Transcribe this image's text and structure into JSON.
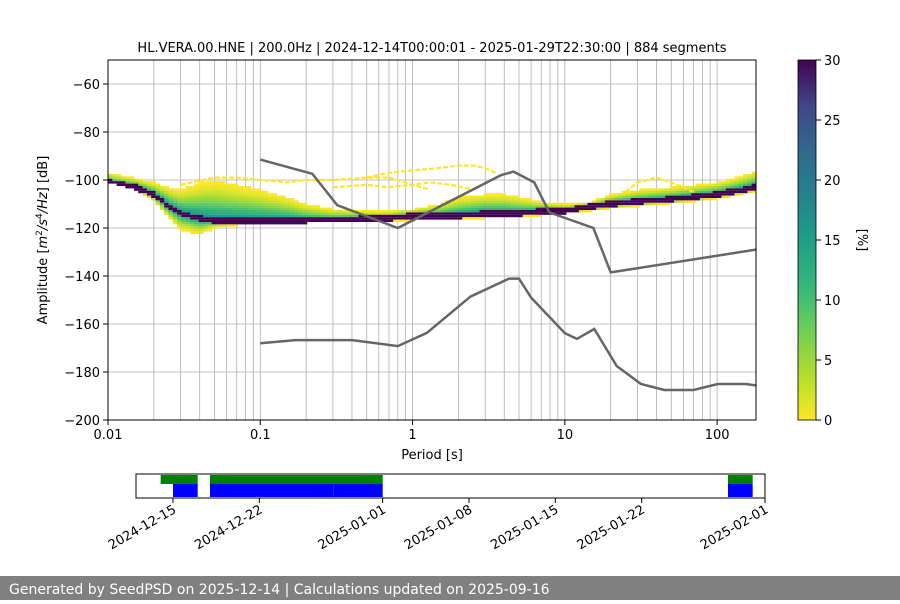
{
  "chart_data": {
    "type": "heatmap",
    "title": "HL.VERA.00.HNE | 200.0Hz | 2024-12-14T00:00:01 - 2025-01-29T22:30:00 | 884 segments",
    "xlabel": "Period [s]",
    "ylabel": "Amplitude [m²/s⁴/Hz] [dB]",
    "xscale": "log",
    "xlim": [
      0.01,
      180
    ],
    "ylim": [
      -200,
      -50
    ],
    "x_ticks": [
      {
        "value": 0.01,
        "label": "0.01"
      },
      {
        "value": 0.1,
        "label": "0.1"
      },
      {
        "value": 1,
        "label": "1"
      },
      {
        "value": 10,
        "label": "10"
      },
      {
        "value": 100,
        "label": "100"
      }
    ],
    "y_ticks": [
      {
        "value": -60,
        "label": "−60"
      },
      {
        "value": -80,
        "label": "−80"
      },
      {
        "value": -100,
        "label": "−100"
      },
      {
        "value": -120,
        "label": "−120"
      },
      {
        "value": -140,
        "label": "−140"
      },
      {
        "value": -160,
        "label": "−160"
      },
      {
        "value": -180,
        "label": "−180"
      },
      {
        "value": -200,
        "label": "−200"
      }
    ],
    "grid": true,
    "colorbar": {
      "label": "[%]",
      "range": [
        0,
        30
      ],
      "ticks": [
        {
          "value": 0,
          "label": "0"
        },
        {
          "value": 5,
          "label": "5"
        },
        {
          "value": 10,
          "label": "10"
        },
        {
          "value": 15,
          "label": "15"
        },
        {
          "value": 20,
          "label": "20"
        },
        {
          "value": 25,
          "label": "25"
        },
        {
          "value": 30,
          "label": "30"
        }
      ],
      "colormap": "viridis_r"
    },
    "psd_mode": {
      "period": [
        0.01,
        0.015,
        0.02,
        0.025,
        0.03,
        0.04,
        0.05,
        0.07,
        0.1,
        0.15,
        0.2,
        0.3,
        0.5,
        0.7,
        1,
        1.5,
        2,
        3,
        4,
        5,
        7,
        10,
        15,
        20,
        30,
        50,
        70,
        100,
        150,
        180
      ],
      "db": [
        -101,
        -103,
        -106,
        -111,
        -114,
        -116,
        -117,
        -117,
        -117,
        -117,
        -117,
        -117,
        -116,
        -116,
        -115,
        -115,
        -115,
        -114,
        -114,
        -114,
        -113,
        -113,
        -111,
        -110,
        -109,
        -108,
        -107,
        -106,
        -104,
        -103
      ]
    },
    "psd_band_upper": {
      "period": [
        0.01,
        0.015,
        0.02,
        0.025,
        0.03,
        0.04,
        0.05,
        0.07,
        0.1,
        0.15,
        0.2,
        0.3,
        0.5,
        0.7,
        1,
        1.5,
        2,
        3,
        4,
        5,
        7,
        10,
        15,
        20,
        30,
        50,
        70,
        100,
        150,
        180
      ],
      "db": [
        -97,
        -99,
        -101,
        -103,
        -104,
        -101,
        -100,
        -102,
        -104,
        -107,
        -110,
        -112,
        -113,
        -113,
        -112,
        -110,
        -107,
        -106,
        -106,
        -107,
        -109,
        -110,
        -109,
        -106,
        -104,
        -103,
        -102,
        -101,
        -98,
        -96
      ]
    },
    "psd_band_lower": {
      "period": [
        0.01,
        0.015,
        0.02,
        0.025,
        0.03,
        0.04,
        0.05,
        0.07,
        0.1,
        0.15,
        0.2,
        0.3,
        0.5,
        0.7,
        1,
        1.5,
        2,
        3,
        4,
        5,
        7,
        10,
        15,
        20,
        30,
        50,
        70,
        100,
        150,
        180
      ],
      "db": [
        -101,
        -104,
        -109,
        -116,
        -121,
        -123,
        -120,
        -119,
        -118,
        -118,
        -118,
        -117,
        -117,
        -117,
        -117,
        -116,
        -116,
        -116,
        -115,
        -115,
        -115,
        -114,
        -113,
        -112,
        -111,
        -110,
        -109,
        -108,
        -106,
        -105
      ]
    },
    "nhnm": {
      "period": [
        0.1,
        0.22,
        0.32,
        0.8,
        3.8,
        4.6,
        6.3,
        7.9,
        15.4,
        20,
        180
      ],
      "db": [
        -91.5,
        -97.4,
        -110.5,
        -120,
        -98,
        -96.5,
        -101,
        -113.5,
        -120,
        -138.5,
        -129
      ]
    },
    "nlnm": {
      "period": [
        0.1,
        0.17,
        0.4,
        0.8,
        1.24,
        2.4,
        4.3,
        5,
        6,
        10,
        12,
        15.6,
        21.9,
        31.6,
        45,
        70,
        101,
        154,
        180
      ],
      "db": [
        -168,
        -166.7,
        -166.7,
        -169.2,
        -163.7,
        -148.6,
        -141.1,
        -141.1,
        -149,
        -163.8,
        -166.2,
        -162.1,
        -177.5,
        -185,
        -187.5,
        -187.5,
        -185,
        -185,
        -185.6
      ]
    },
    "overlay_curves": [
      {
        "period": [
          0.03,
          0.05,
          0.07,
          0.1,
          0.15,
          0.2,
          0.3,
          0.5,
          0.7,
          1,
          1.3
        ],
        "db": [
          -102,
          -99,
          -99,
          -100,
          -101,
          -100,
          -100,
          -99,
          -99,
          -102,
          -104
        ]
      },
      {
        "period": [
          0.5,
          0.7,
          1,
          1.5,
          2,
          2.5,
          3,
          3.5
        ],
        "db": [
          -99,
          -97,
          -96,
          -95,
          -94,
          -94,
          -95,
          -97
        ]
      },
      {
        "period": [
          0.3,
          0.5,
          0.7,
          1,
          1.3,
          1.8,
          2.5
        ],
        "db": [
          -103,
          -102,
          -103,
          -102,
          -101,
          -102,
          -104
        ]
      },
      {
        "period": [
          25,
          30,
          40,
          50,
          70
        ],
        "db": [
          -105,
          -101,
          -99,
          -101,
          -105
        ]
      }
    ]
  },
  "timeline": {
    "date_ticks": [
      "2024-12-15",
      "2024-12-22",
      "2025-01-01",
      "2025-01-08",
      "2025-01-15",
      "2025-01-22",
      "2025-02-01"
    ],
    "date_range": [
      "2024-12-12",
      "2025-02-01"
    ],
    "green_segments": [
      [
        "2024-12-14",
        "2024-12-17"
      ],
      [
        "2024-12-18",
        "2025-01-01"
      ],
      [
        "2025-01-29",
        "2025-01-31"
      ]
    ],
    "blue_segments": [
      [
        "2024-12-15",
        "2024-12-17"
      ],
      [
        "2024-12-18",
        "2024-12-28"
      ],
      [
        "2024-12-28",
        "2025-01-01"
      ],
      [
        "2025-01-29",
        "2025-01-31"
      ]
    ],
    "green_color": "#008000",
    "blue_color": "#0000ff"
  },
  "footer": {
    "text": "Generated by SeedPSD on 2025-12-14 | Calculations updated on 2025-09-16",
    "background": "#808080"
  }
}
